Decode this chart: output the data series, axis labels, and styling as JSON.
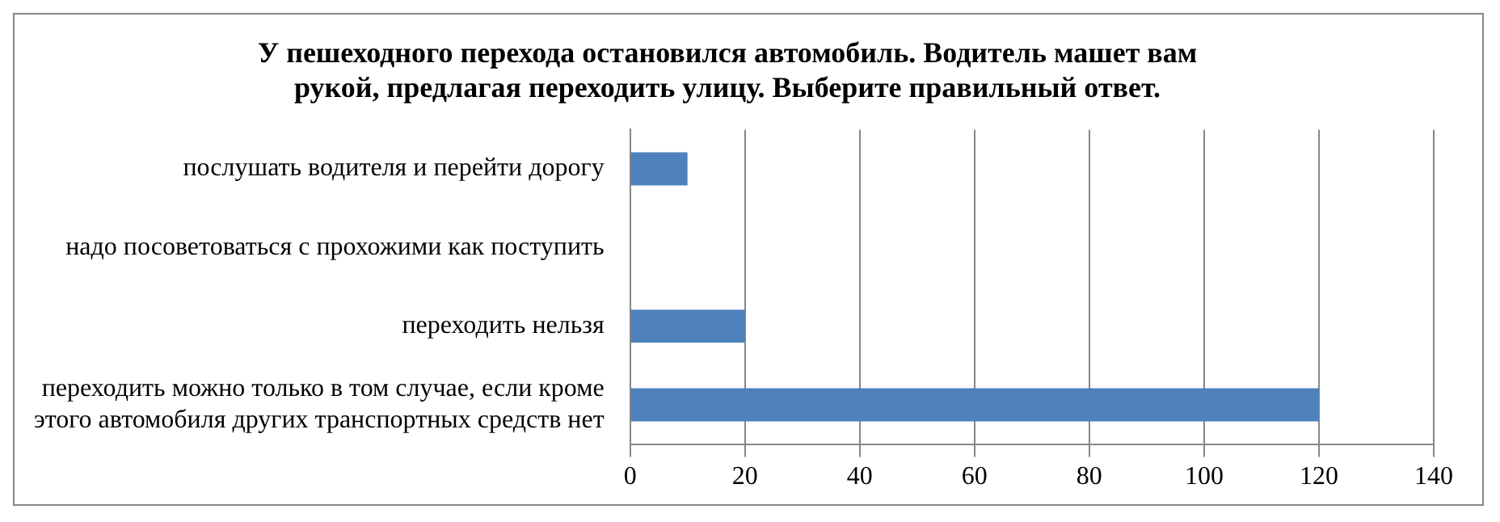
{
  "chart_data": {
    "type": "bar",
    "orientation": "horizontal",
    "title": "У пешеходного перехода остановился автомобиль. Водитель машет вам рукой, предлагая переходить улицу. Выберите правильный ответ.",
    "categories": [
      "послушать водителя и перейти дорогу",
      "надо посоветоваться с прохожими как поступить",
      "переходить нельзя",
      "переходить можно только в том случае, если кроме этого автомобиля других транспортных средств нет"
    ],
    "values": [
      10,
      0,
      20,
      120
    ],
    "color": "#4f81bd",
    "xlim": [
      0,
      140
    ],
    "xticks": [
      0,
      20,
      40,
      60,
      80,
      100,
      120,
      140
    ],
    "grid": "x",
    "legend": false
  }
}
